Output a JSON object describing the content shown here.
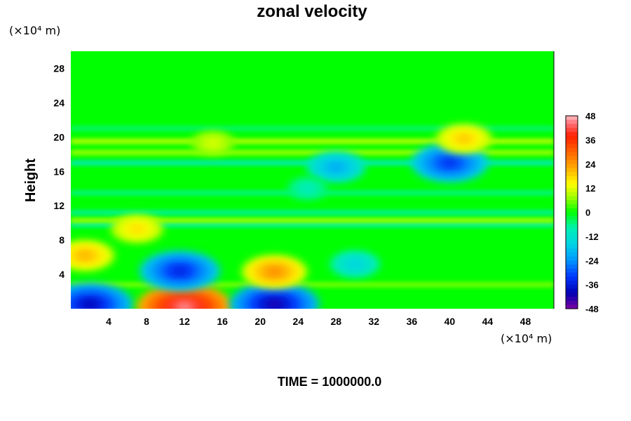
{
  "chart_data": {
    "type": "heatmap",
    "title": "zonal velocity",
    "ylabel": "Height",
    "xlabel": "",
    "x_unit": "(×10⁴ m)",
    "y_unit": "(×10⁴ m)",
    "x_ticks": [
      "4",
      "8",
      "12",
      "16",
      "20",
      "24",
      "28",
      "32",
      "36",
      "40",
      "44",
      "48"
    ],
    "y_ticks": [
      "4",
      "8",
      "12",
      "16",
      "20",
      "24",
      "28"
    ],
    "xlim": [
      0,
      51
    ],
    "ylim": [
      0,
      30
    ],
    "colorbar": {
      "ticks": [
        "48",
        "36",
        "24",
        "12",
        "0",
        "-12",
        "-24",
        "-36",
        "-48"
      ],
      "range": [
        -48,
        48
      ]
    },
    "background_value": 0,
    "features": [
      {
        "x": 2,
        "y": 0.5,
        "value": -40
      },
      {
        "x": 12,
        "y": 0.2,
        "value": 46
      },
      {
        "x": 21.5,
        "y": 0.5,
        "value": -42
      },
      {
        "x": 11.5,
        "y": 4.4,
        "value": -36
      },
      {
        "x": 21.5,
        "y": 4.3,
        "value": 26
      },
      {
        "x": 1.5,
        "y": 6.2,
        "value": 22
      },
      {
        "x": 30,
        "y": 5.2,
        "value": -16
      },
      {
        "x": 7,
        "y": 9.3,
        "value": 18
      },
      {
        "x": 28,
        "y": 16.5,
        "value": -22
      },
      {
        "x": 40,
        "y": 17.0,
        "value": -34
      },
      {
        "x": 41.5,
        "y": 19.8,
        "value": 20
      },
      {
        "x": 15,
        "y": 19.3,
        "value": 12
      },
      {
        "x": 25,
        "y": 14.0,
        "value": -10
      }
    ],
    "bands": [
      {
        "y": 19.5,
        "value": 10
      },
      {
        "y": 9.8,
        "value": -8
      },
      {
        "y": 10.3,
        "value": 8
      },
      {
        "y": 11.2,
        "value": -7
      },
      {
        "y": 13.5,
        "value": -6
      },
      {
        "y": 17.0,
        "value": -10
      },
      {
        "y": 18.2,
        "value": 8
      },
      {
        "y": 21.0,
        "value": -5
      },
      {
        "y": 2.8,
        "value": 6
      }
    ],
    "footer": "TIME = 1000000.0"
  },
  "colors": {
    "stops": [
      {
        "v": -48,
        "c": "#7a00a0"
      },
      {
        "v": -40,
        "c": "#0000b4"
      },
      {
        "v": -32,
        "c": "#0037ff"
      },
      {
        "v": -24,
        "c": "#0096ff"
      },
      {
        "v": -16,
        "c": "#00d2e6"
      },
      {
        "v": -8,
        "c": "#00f0b4"
      },
      {
        "v": 0,
        "c": "#00ff00"
      },
      {
        "v": 8,
        "c": "#aaff00"
      },
      {
        "v": 14,
        "c": "#ffff00"
      },
      {
        "v": 22,
        "c": "#ffaa00"
      },
      {
        "v": 30,
        "c": "#ff6400"
      },
      {
        "v": 38,
        "c": "#ff1e00"
      },
      {
        "v": 44,
        "c": "#ff6e78"
      },
      {
        "v": 48,
        "c": "#ffbebe"
      }
    ]
  }
}
